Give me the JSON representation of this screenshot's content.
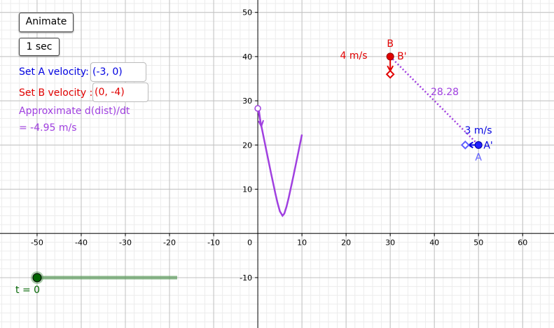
{
  "buttons": {
    "animate": "Animate",
    "duration": "1 sec"
  },
  "inputs": [
    {
      "label": "Set A velocity:",
      "value": "(-3, 0)"
    },
    {
      "label": "Set B velocity :",
      "value": "(0, -4)"
    }
  ],
  "derivative": {
    "label": "Approximate d(dist)/dt",
    "value": "= -4.95 m/s"
  },
  "slider": {
    "label": "t = 0"
  },
  "graph": {
    "xlim": [
      -58.4,
      67.1
    ],
    "ylim": [
      -21.4,
      52.8
    ],
    "xticks": [
      -50,
      -40,
      -30,
      -20,
      -10,
      10,
      20,
      30,
      40,
      50,
      60
    ],
    "yticks": [
      -10,
      10,
      20,
      30,
      40,
      50
    ],
    "origin_label": "0",
    "points": [
      {
        "label": "B",
        "x": 30,
        "y": 40
      },
      {
        "label": "B'",
        "x": 30,
        "y": 36
      },
      {
        "label": "A",
        "x": 50,
        "y": 20
      },
      {
        "label": "A'",
        "x": 47,
        "y": 20
      }
    ],
    "speed_labels": [
      "4 m/s",
      "3 m/s"
    ],
    "distance_label": "28.28",
    "curve": {
      "t": [
        0,
        1,
        2,
        3,
        4,
        4.5,
        5,
        5.6,
        6,
        6.5,
        7,
        8,
        9,
        10
      ],
      "d": [
        28.28,
        23.35,
        18.44,
        13.6,
        8.94,
        6.8,
        5,
        4,
        4.47,
        6.02,
        8.06,
        12.65,
        17.46,
        22.36
      ]
    }
  }
}
